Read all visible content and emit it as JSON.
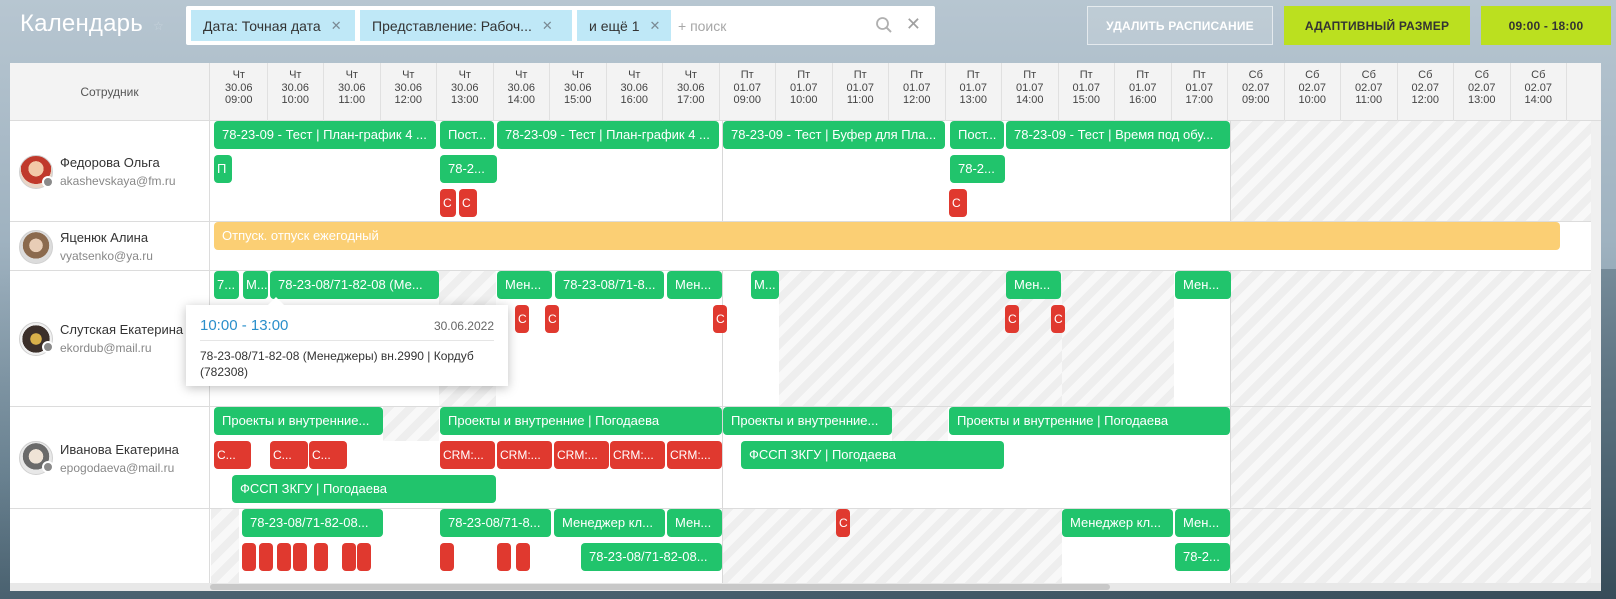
{
  "app": {
    "title": "Календарь"
  },
  "filters": {
    "chips": [
      {
        "label": "Дата: Точная дата"
      },
      {
        "label": "Представление: Рабоч..."
      },
      {
        "label": "и ещё 1"
      }
    ],
    "search_placeholder": "+ поиск"
  },
  "toolbar": {
    "delete_schedule": "УДАЛИТЬ РАСПИСАНИЕ",
    "adaptive_size": "АДАПТИВНЫЙ РАЗМЕР",
    "work_hours": "09:00 - 18:00"
  },
  "colors": {
    "accent": "#bbe01f",
    "event_green": "#21c46c",
    "event_red": "#e0392f",
    "vacation": "#fbcf74",
    "link": "#2a8fcb"
  },
  "grid": {
    "employee_header": "Сотрудник",
    "columns": [
      [
        "Чт",
        "30.06",
        "09:00"
      ],
      [
        "Чт",
        "30.06",
        "10:00"
      ],
      [
        "Чт",
        "30.06",
        "11:00"
      ],
      [
        "Чт",
        "30.06",
        "12:00"
      ],
      [
        "Чт",
        "30.06",
        "13:00"
      ],
      [
        "Чт",
        "30.06",
        "14:00"
      ],
      [
        "Чт",
        "30.06",
        "15:00"
      ],
      [
        "Чт",
        "30.06",
        "16:00"
      ],
      [
        "Чт",
        "30.06",
        "17:00"
      ],
      [
        "Пт",
        "01.07",
        "09:00"
      ],
      [
        "Пт",
        "01.07",
        "10:00"
      ],
      [
        "Пт",
        "01.07",
        "11:00"
      ],
      [
        "Пт",
        "01.07",
        "12:00"
      ],
      [
        "Пт",
        "01.07",
        "13:00"
      ],
      [
        "Пт",
        "01.07",
        "14:00"
      ],
      [
        "Пт",
        "01.07",
        "15:00"
      ],
      [
        "Пт",
        "01.07",
        "16:00"
      ],
      [
        "Пт",
        "01.07",
        "17:00"
      ],
      [
        "Сб",
        "02.07",
        "09:00"
      ],
      [
        "Сб",
        "02.07",
        "10:00"
      ],
      [
        "Сб",
        "02.07",
        "11:00"
      ],
      [
        "Сб",
        "02.07",
        "12:00"
      ],
      [
        "Сб",
        "02.07",
        "13:00"
      ],
      [
        "Сб",
        "02.07",
        "14:00"
      ]
    ]
  },
  "employees": [
    {
      "name": "Федорова Ольга",
      "email": "akashevskaya@fm.ru",
      "events": [
        {
          "label": "78-23-09 - Тест | План-график 4 ...",
          "color": "green"
        },
        {
          "label": "Пост...",
          "color": "green"
        },
        {
          "label": "78-23-09 - Тест | План-график 4 ...",
          "color": "green"
        },
        {
          "label": "78-23-09 - Тест | Буфер для Пла...",
          "color": "green"
        },
        {
          "label": "Пост...",
          "color": "green"
        },
        {
          "label": "78-23-09 - Тест | Время под обу...",
          "color": "green"
        },
        {
          "label": "П",
          "color": "green"
        },
        {
          "label": "78-2...",
          "color": "green"
        },
        {
          "label": "78-2...",
          "color": "green"
        },
        {
          "label": "С",
          "color": "red"
        },
        {
          "label": "С",
          "color": "red"
        },
        {
          "label": "С",
          "color": "red"
        }
      ]
    },
    {
      "name": "Яценюк Алина",
      "email": "vyatsenko@ya.ru",
      "events": [
        {
          "label": "Отпуск. отпуск ежегодный",
          "color": "orange"
        }
      ]
    },
    {
      "name": "Слутская Екатерина",
      "email": "ekordub@mail.ru",
      "events": [
        {
          "label": "7...",
          "color": "green"
        },
        {
          "label": "М...",
          "color": "green"
        },
        {
          "label": "78-23-08/71-82-08 (Ме...",
          "color": "green"
        },
        {
          "label": "Мен...",
          "color": "green"
        },
        {
          "label": "78-23-08/71-8...",
          "color": "green"
        },
        {
          "label": "Мен...",
          "color": "green"
        },
        {
          "label": "М...",
          "color": "green"
        },
        {
          "label": "Мен...",
          "color": "green"
        },
        {
          "label": "Мен...",
          "color": "green"
        },
        {
          "label": "С",
          "color": "red"
        },
        {
          "label": "С",
          "color": "red"
        },
        {
          "label": "С",
          "color": "red"
        },
        {
          "label": "С",
          "color": "red"
        },
        {
          "label": "С",
          "color": "red"
        }
      ]
    },
    {
      "name": "Иванова Екатерина",
      "email": "epogodaeva@mail.ru",
      "events": [
        {
          "label": "Проекты и внутренние...",
          "color": "green"
        },
        {
          "label": "Проекты и внутренние | Погодаева",
          "color": "green"
        },
        {
          "label": "Проекты и внутренние...",
          "color": "green"
        },
        {
          "label": "Проекты и внутренние | Погодаева",
          "color": "green"
        },
        {
          "label": "С...",
          "color": "red"
        },
        {
          "label": "С...",
          "color": "red"
        },
        {
          "label": "С...",
          "color": "red"
        },
        {
          "label": "CRM:...",
          "color": "red"
        },
        {
          "label": "CRM:...",
          "color": "red"
        },
        {
          "label": "CRM:...",
          "color": "red"
        },
        {
          "label": "CRM:...",
          "color": "red"
        },
        {
          "label": "CRM:...",
          "color": "red"
        },
        {
          "label": "ФССП ЗКГУ | Погодаева",
          "color": "green"
        },
        {
          "label": "ФССП ЗКГУ | Погодаева",
          "color": "green"
        }
      ]
    },
    {
      "name": "",
      "email": "",
      "events": [
        {
          "label": "78-23-08/71-82-08...",
          "color": "green"
        },
        {
          "label": "78-23-08/71-8...",
          "color": "green"
        },
        {
          "label": "Менеджер кл...",
          "color": "green"
        },
        {
          "label": "Мен...",
          "color": "green"
        },
        {
          "label": "Менеджер кл...",
          "color": "green"
        },
        {
          "label": "Мен...",
          "color": "green"
        },
        {
          "label": "78-23-08/71-82-08...",
          "color": "green"
        },
        {
          "label": "78-2...",
          "color": "green"
        },
        {
          "label": "С",
          "color": "red"
        }
      ]
    }
  ],
  "tooltip": {
    "time": "10:00 - 13:00",
    "date": "30.06.2022",
    "description": "78-23-08/71-82-08 (Менеджеры) вн.2990 | Кордуб (782308)"
  }
}
